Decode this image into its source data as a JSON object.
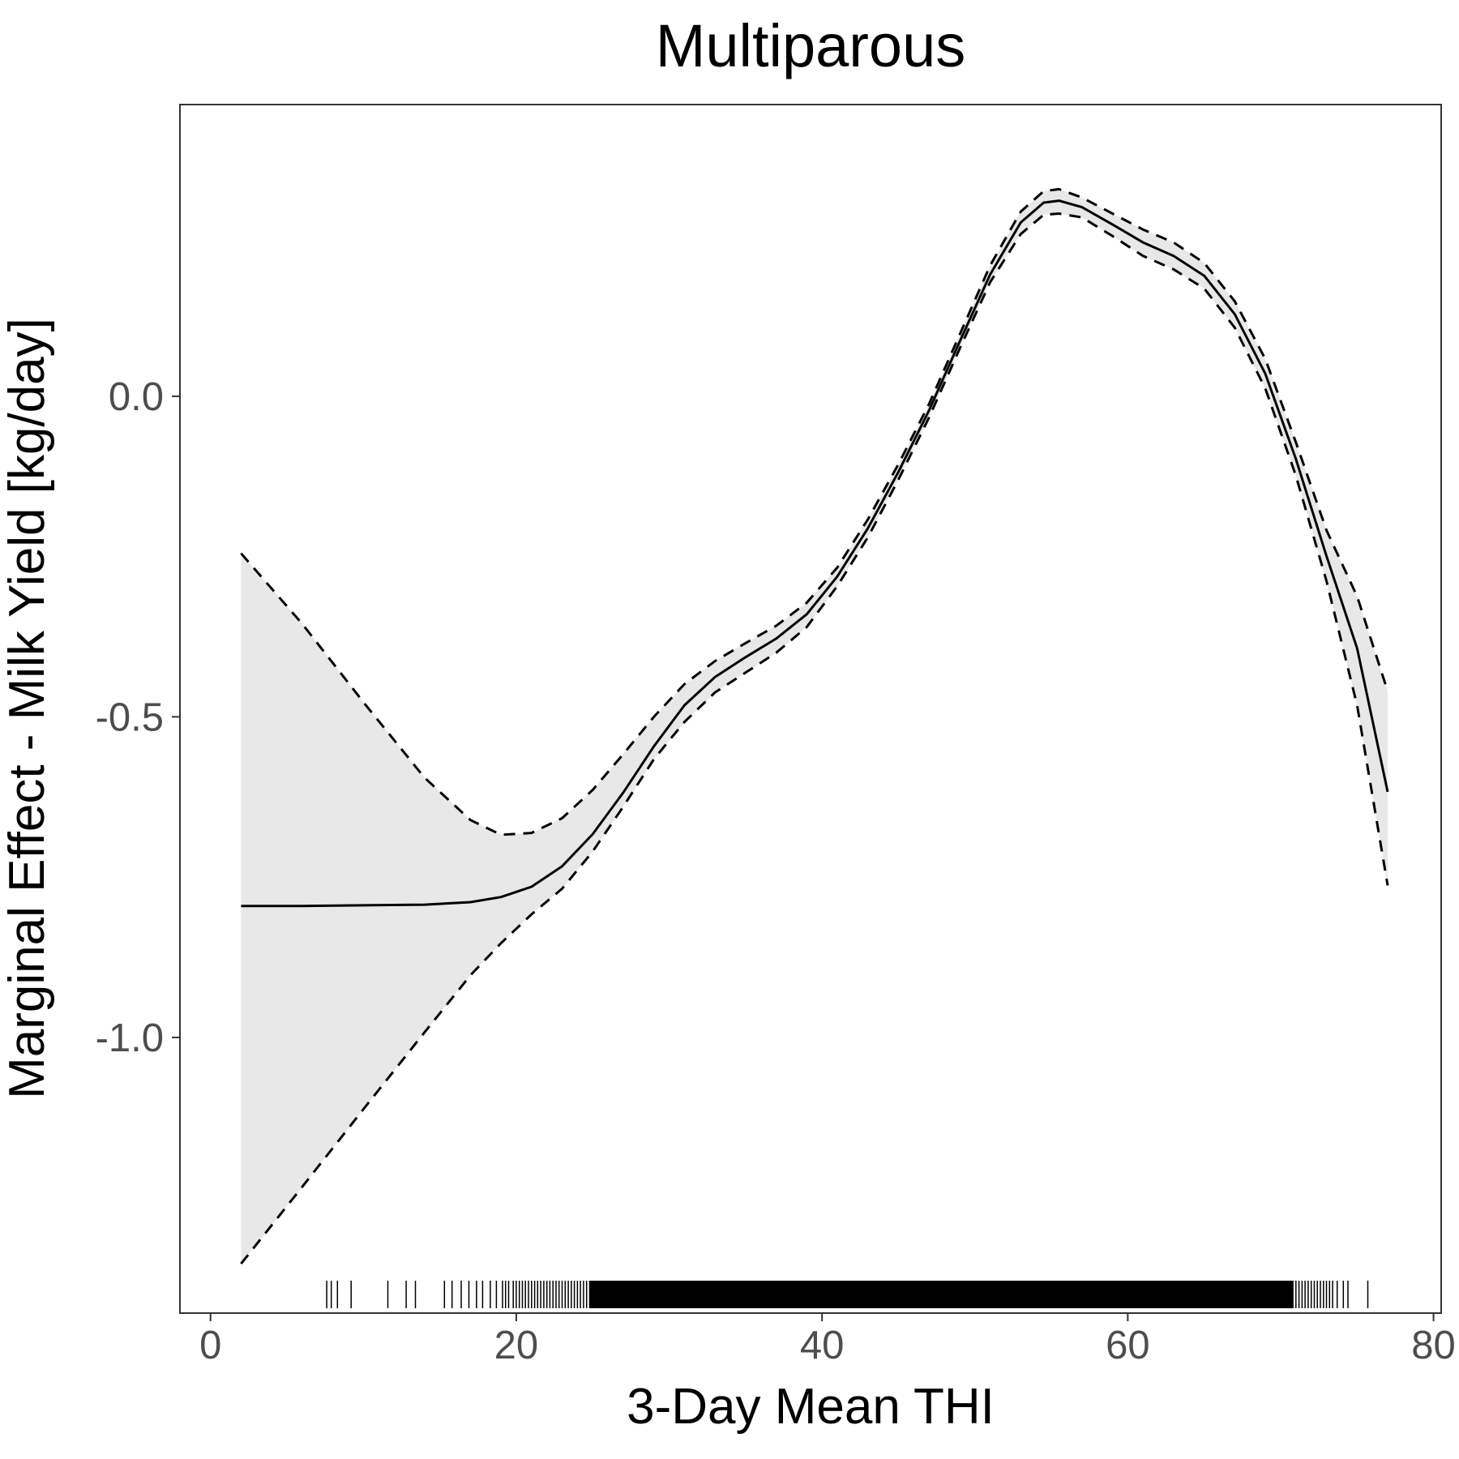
{
  "chart_data": {
    "type": "line",
    "title": "Multiparous",
    "xlabel": "3-Day Mean THI",
    "ylabel": "Marginal Effect - Milk Yield [kg/day]",
    "xlim": [
      -2,
      80.5
    ],
    "ylim": [
      -1.43,
      0.455
    ],
    "x_ticks": [
      0,
      20,
      40,
      60,
      80
    ],
    "y_ticks": [
      -1.0,
      -0.5,
      0.0
    ],
    "x_tick_labels": [
      "0",
      "20",
      "40",
      "60",
      "80"
    ],
    "y_tick_labels": [
      "-1.0",
      "-0.5",
      "0.0"
    ],
    "grid": false,
    "legend": "none",
    "colors": {
      "line": "#000000",
      "ribbon": "#e8e8e8",
      "panel_border": "#333333",
      "tick_text": "#4d4d4d"
    },
    "series": [
      {
        "name": "estimate",
        "style": "solid",
        "x": [
          2,
          6,
          10,
          14,
          17,
          19,
          21,
          23,
          25,
          27,
          29,
          31,
          33,
          35,
          37,
          39,
          41,
          43,
          45,
          47,
          49,
          51,
          53,
          54.5,
          55.5,
          57,
          59,
          61,
          63,
          65,
          67,
          69,
          71,
          73,
          75,
          77
        ],
        "y": [
          -0.795,
          -0.795,
          -0.794,
          -0.793,
          -0.789,
          -0.781,
          -0.765,
          -0.733,
          -0.683,
          -0.618,
          -0.546,
          -0.482,
          -0.438,
          -0.407,
          -0.378,
          -0.34,
          -0.281,
          -0.206,
          -0.118,
          -0.022,
          0.085,
          0.19,
          0.271,
          0.302,
          0.305,
          0.295,
          0.268,
          0.24,
          0.219,
          0.188,
          0.128,
          0.035,
          -0.098,
          -0.249,
          -0.393,
          -0.617
        ]
      },
      {
        "name": "upper",
        "style": "dashed",
        "x": [
          2,
          6,
          10,
          14,
          17,
          19,
          21,
          23,
          25,
          27,
          29,
          31,
          33,
          35,
          37,
          39,
          41,
          43,
          45,
          47,
          49,
          51,
          53,
          54.5,
          55.5,
          57,
          59,
          61,
          63,
          65,
          67,
          69,
          71,
          73,
          75,
          77
        ],
        "y": [
          -0.245,
          -0.355,
          -0.477,
          -0.595,
          -0.661,
          -0.684,
          -0.681,
          -0.658,
          -0.614,
          -0.558,
          -0.5,
          -0.449,
          -0.413,
          -0.385,
          -0.358,
          -0.322,
          -0.267,
          -0.192,
          -0.106,
          -0.012,
          0.096,
          0.204,
          0.288,
          0.32,
          0.323,
          0.31,
          0.285,
          0.26,
          0.24,
          0.208,
          0.148,
          0.058,
          -0.072,
          -0.209,
          -0.312,
          -0.46
        ]
      },
      {
        "name": "lower",
        "style": "dashed",
        "x": [
          2,
          6,
          10,
          14,
          17,
          19,
          21,
          23,
          25,
          27,
          29,
          31,
          33,
          35,
          37,
          39,
          41,
          43,
          45,
          47,
          49,
          51,
          53,
          54.5,
          55.5,
          57,
          59,
          61,
          63,
          65,
          67,
          69,
          71,
          73,
          75,
          77
        ],
        "y": [
          -1.353,
          -1.233,
          -1.112,
          -0.992,
          -0.903,
          -0.853,
          -0.808,
          -0.768,
          -0.71,
          -0.64,
          -0.566,
          -0.508,
          -0.462,
          -0.431,
          -0.4,
          -0.36,
          -0.296,
          -0.22,
          -0.13,
          -0.033,
          0.074,
          0.178,
          0.253,
          0.283,
          0.285,
          0.279,
          0.25,
          0.219,
          0.198,
          0.168,
          0.107,
          0.012,
          -0.124,
          -0.288,
          -0.482,
          -0.763
        ]
      }
    ],
    "rug_x": [
      7.6,
      7.9,
      8.3,
      9.2,
      11.6,
      12.8,
      13.4,
      15.3,
      15.8,
      16.4,
      16.9,
      17.4,
      17.8,
      18.3,
      18.7,
      19.1,
      19.3,
      19.5,
      19.8,
      20.0,
      20.2,
      20.4,
      20.6,
      20.8,
      21.0,
      21.2,
      21.4,
      21.6,
      21.8,
      22.0,
      22.2,
      22.4,
      22.6,
      22.8,
      23.0,
      23.2,
      23.4,
      23.6,
      23.8,
      24.0,
      24.2,
      24.4,
      24.6,
      24.8,
      70.8,
      71.0,
      71.2,
      71.4,
      71.6,
      71.8,
      72.0,
      72.2,
      72.4,
      72.6,
      72.8,
      73.0,
      73.2,
      73.4,
      73.7,
      74.1,
      74.4,
      75.7
    ],
    "rug_dense_range": [
      24.8,
      70.8
    ]
  }
}
